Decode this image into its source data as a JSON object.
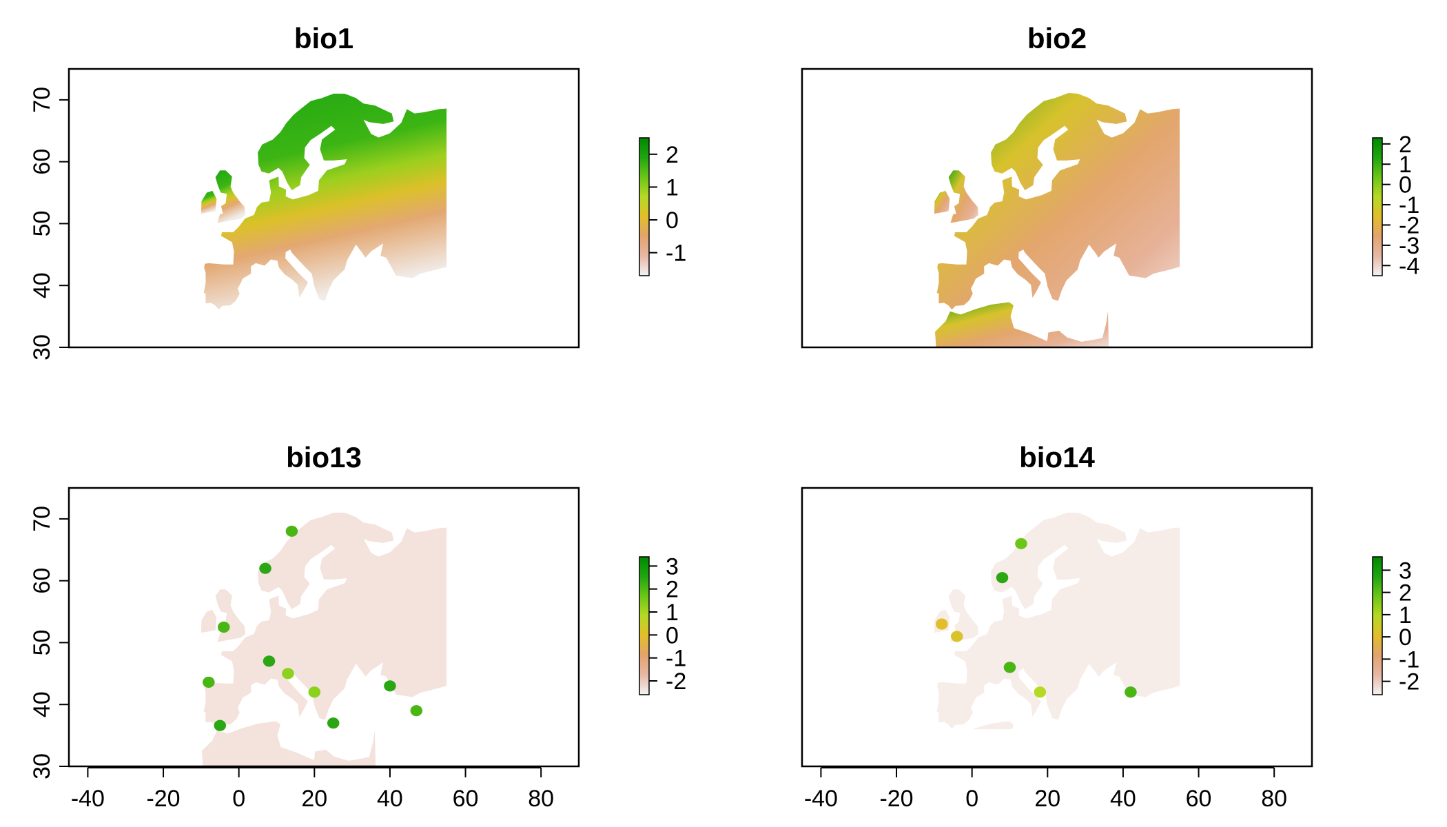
{
  "colors": {
    "ramp": [
      "#f3f3f3",
      "#e7b8a6",
      "#e3a36d",
      "#e2be2a",
      "#b6d924",
      "#6cc617",
      "#20a512",
      "#008a00"
    ],
    "frame": "#000000",
    "background": "#ffffff"
  },
  "chart_data": [
    {
      "type": "heatmap",
      "title": "bio1",
      "xlim": [
        -45,
        90
      ],
      "ylim": [
        30,
        75
      ],
      "x_ticks": [
        "-40",
        "-20",
        "0",
        "20",
        "40",
        "60",
        "80"
      ],
      "y_ticks": [
        "30",
        "40",
        "50",
        "60",
        "70"
      ],
      "show_x_axis": false,
      "show_y_axis": true,
      "data_extent": {
        "lon": [
          -10,
          55
        ],
        "lat": [
          30,
          71
        ]
      },
      "colorbar": {
        "range": [
          -1.7,
          2.5
        ],
        "ticks": [
          "-1",
          "0",
          "1",
          "2"
        ]
      }
    },
    {
      "type": "heatmap",
      "title": "bio2",
      "xlim": [
        -45,
        90
      ],
      "ylim": [
        30,
        75
      ],
      "x_ticks": [
        "-40",
        "-20",
        "0",
        "20",
        "40",
        "60",
        "80"
      ],
      "y_ticks": [
        "30",
        "40",
        "50",
        "60",
        "70"
      ],
      "show_x_axis": false,
      "show_y_axis": false,
      "data_extent": {
        "lon": [
          -10,
          55
        ],
        "lat": [
          30,
          74
        ]
      },
      "colorbar": {
        "range": [
          -4.5,
          2.3
        ],
        "ticks": [
          "-4",
          "-3",
          "-2",
          "-1",
          "0",
          "1",
          "2"
        ]
      }
    },
    {
      "type": "heatmap",
      "title": "bio13",
      "xlim": [
        -45,
        90
      ],
      "ylim": [
        30,
        75
      ],
      "x_ticks": [
        "-40",
        "-20",
        "0",
        "20",
        "40",
        "60",
        "80"
      ],
      "y_ticks": [
        "30",
        "40",
        "50",
        "60",
        "70"
      ],
      "show_x_axis": true,
      "show_y_axis": true,
      "data_extent": {
        "lon": [
          -10,
          55
        ],
        "lat": [
          30,
          71
        ]
      },
      "colorbar": {
        "range": [
          -2.6,
          3.4
        ],
        "ticks": [
          "-2",
          "-1",
          "0",
          "1",
          "2",
          "3"
        ]
      }
    },
    {
      "type": "heatmap",
      "title": "bio14",
      "xlim": [
        -45,
        90
      ],
      "ylim": [
        30,
        75
      ],
      "x_ticks": [
        "-40",
        "-20",
        "0",
        "20",
        "40",
        "60",
        "80"
      ],
      "y_ticks": [
        "30",
        "40",
        "50",
        "60",
        "70"
      ],
      "show_x_axis": true,
      "show_y_axis": false,
      "data_extent": {
        "lon": [
          -10,
          55
        ],
        "lat": [
          36,
          71
        ]
      },
      "colorbar": {
        "range": [
          -2.6,
          3.6
        ],
        "ticks": [
          "-2",
          "-1",
          "0",
          "1",
          "2",
          "3"
        ]
      }
    }
  ]
}
